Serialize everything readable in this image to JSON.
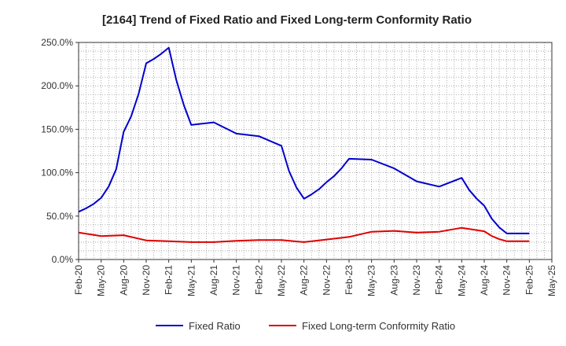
{
  "chart_data": {
    "type": "line",
    "title": "[2164]  Trend of Fixed Ratio and Fixed Long-term Conformity Ratio",
    "xlabel": "",
    "ylabel": "",
    "ylim": [
      0,
      250
    ],
    "grid": true,
    "legend_position": "bottom",
    "y_ticks": [
      "0.0%",
      "50.0%",
      "100.0%",
      "150.0%",
      "200.0%",
      "250.0%"
    ],
    "x_ticks": [
      "Feb-20",
      "May-20",
      "Aug-20",
      "Nov-20",
      "Feb-21",
      "May-21",
      "Aug-21",
      "Nov-21",
      "Feb-22",
      "May-22",
      "Aug-22",
      "Nov-22",
      "Feb-23",
      "May-23",
      "Aug-23",
      "Nov-23",
      "Feb-24",
      "May-24",
      "Aug-24",
      "Nov-24",
      "Feb-25",
      "May-25"
    ],
    "series": [
      {
        "name": "Fixed Ratio",
        "color": "#0000cc",
        "points": [
          [
            "2020-02",
            55
          ],
          [
            "2020-03",
            59
          ],
          [
            "2020-04",
            64
          ],
          [
            "2020-05",
            71
          ],
          [
            "2020-06",
            84
          ],
          [
            "2020-07",
            104
          ],
          [
            "2020-08",
            147
          ],
          [
            "2020-09",
            165
          ],
          [
            "2020-10",
            191
          ],
          [
            "2020-11",
            226
          ],
          [
            "2020-12",
            231
          ],
          [
            "2021-01",
            237
          ],
          [
            "2021-02",
            244
          ],
          [
            "2021-03",
            207
          ],
          [
            "2021-04",
            178
          ],
          [
            "2021-05",
            155
          ],
          [
            "2021-08",
            158
          ],
          [
            "2021-11",
            145
          ],
          [
            "2022-02",
            142
          ],
          [
            "2022-05",
            131
          ],
          [
            "2022-06",
            102
          ],
          [
            "2022-07",
            83
          ],
          [
            "2022-08",
            70
          ],
          [
            "2022-09",
            75
          ],
          [
            "2022-10",
            81
          ],
          [
            "2022-11",
            89
          ],
          [
            "2022-12",
            96
          ],
          [
            "2023-01",
            105
          ],
          [
            "2023-02",
            116
          ],
          [
            "2023-05",
            115
          ],
          [
            "2023-08",
            105
          ],
          [
            "2023-11",
            90
          ],
          [
            "2024-02",
            84
          ],
          [
            "2024-05",
            94
          ],
          [
            "2024-06",
            80
          ],
          [
            "2024-07",
            70
          ],
          [
            "2024-08",
            62
          ],
          [
            "2024-09",
            47
          ],
          [
            "2024-10",
            37
          ],
          [
            "2024-11",
            30
          ],
          [
            "2025-02",
            30
          ]
        ]
      },
      {
        "name": "Fixed Long-term Conformity Ratio",
        "color": "#dd0000",
        "points": [
          [
            "2020-02",
            31
          ],
          [
            "2020-05",
            27
          ],
          [
            "2020-08",
            28
          ],
          [
            "2020-11",
            22
          ],
          [
            "2021-02",
            21
          ],
          [
            "2021-05",
            20
          ],
          [
            "2021-08",
            20
          ],
          [
            "2021-11",
            21.5
          ],
          [
            "2022-02",
            22.5
          ],
          [
            "2022-05",
            22.5
          ],
          [
            "2022-08",
            20
          ],
          [
            "2022-11",
            23
          ],
          [
            "2023-02",
            26
          ],
          [
            "2023-05",
            32
          ],
          [
            "2023-08",
            33
          ],
          [
            "2023-11",
            31
          ],
          [
            "2024-02",
            32
          ],
          [
            "2024-05",
            36.5
          ],
          [
            "2024-08",
            32.5
          ],
          [
            "2024-09",
            27
          ],
          [
            "2024-10",
            23.5
          ],
          [
            "2024-11",
            21
          ],
          [
            "2025-02",
            21
          ]
        ]
      }
    ]
  }
}
